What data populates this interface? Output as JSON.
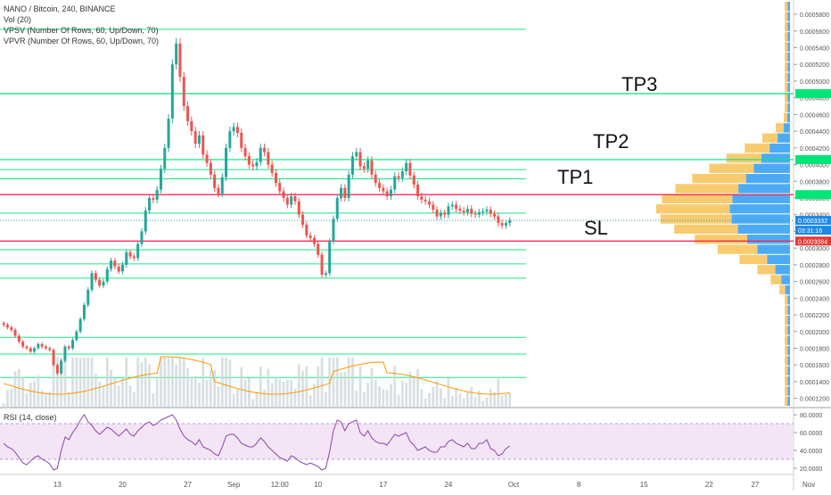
{
  "header": {
    "symbol_line": "NANO / Bitcoin, 240, BINANCE",
    "vol_line": "Vol (20)",
    "vpsv_line": "VPSV (Number Of Rows, 60, Up/Down, 70)",
    "vpvr_line": "VPVR (Number Of Rows, 60, Up/Down, 70)"
  },
  "rsi_panel": {
    "label": "RSI (14, close)",
    "ticks": [
      "80.0000",
      "60.0000",
      "40.0000",
      "20.0000"
    ],
    "tick_values": [
      80,
      60,
      40,
      20
    ],
    "bands": [
      70,
      30
    ]
  },
  "annotations": {
    "tp3": "TP3",
    "tp2": "TP2",
    "tp1": "TP1",
    "sl": "SL"
  },
  "price_axis": {
    "ticks": [
      "0.0005800",
      "0.0005600",
      "0.0005400",
      "0.0005200",
      "0.0005000",
      "0.0004800",
      "0.0004600",
      "0.0004400",
      "0.0004200",
      "0.0004000",
      "0.0003800",
      "0.0003600",
      "0.0003400",
      "0.0003200",
      "0.0003000",
      "0.0002800",
      "0.0002600",
      "0.0002400",
      "0.0002200",
      "0.0002000",
      "0.0001800",
      "0.0001600",
      "0.0001400",
      "0.0001200"
    ],
    "tick_values": [
      0.00058,
      0.00056,
      0.00054,
      0.00052,
      0.0005,
      0.00048,
      0.00046,
      0.00044,
      0.00042,
      0.0004,
      0.00038,
      0.00036,
      0.00034,
      0.00032,
      0.0003,
      0.00028,
      0.00026,
      0.00024,
      0.00022,
      0.0002,
      0.00018,
      0.00016,
      0.00014,
      0.00012
    ],
    "badges": [
      {
        "text": "0.0003332",
        "value": 0.0003332,
        "bg": "#1e88e5",
        "fg": "#ffffff"
      },
      {
        "text": "03:31:16",
        "value": 0.0003214,
        "bg": "#1e88e5",
        "fg": "#ffffff"
      },
      {
        "text": "0.0003084",
        "value": 0.0003084,
        "bg": "#e53935",
        "fg": "#ffffff"
      }
    ]
  },
  "time_axis": {
    "labels": [
      {
        "text": "13",
        "slot": 14
      },
      {
        "text": "20",
        "slot": 31
      },
      {
        "text": "27",
        "slot": 48
      },
      {
        "text": "Sep",
        "slot": 60
      },
      {
        "text": "12:00",
        "slot": 72
      },
      {
        "text": "10",
        "slot": 82
      },
      {
        "text": "17",
        "slot": 99
      },
      {
        "text": "24",
        "slot": 116
      },
      {
        "text": "Oct",
        "slot": 133
      },
      {
        "text": "8",
        "slot": 150
      },
      {
        "text": "15",
        "slot": 167
      },
      {
        "text": "22",
        "slot": 184
      },
      {
        "text": "27",
        "slot": 196
      },
      {
        "text": "Nov",
        "slot": 210
      }
    ]
  },
  "colors": {
    "up": "#26a69a",
    "down": "#ef5350",
    "level_green": "#00e676",
    "level_red": "#ff1744",
    "vp_up": "#2196f3",
    "vp_down": "#f5b942",
    "rsi_line": "#8e44ad",
    "rsi_bg": "#f3e5f5",
    "vol_ma": "#ff9800"
  },
  "chart_data": {
    "type": "candlestick",
    "y_range": [
      0.00011,
      0.000595
    ],
    "price_close": 0.0003332,
    "level_lines": [
      {
        "kind": "tp3",
        "value": 0.000485
      },
      {
        "kind": "tp2",
        "value": 0.000406
      },
      {
        "kind": "tp1",
        "value": 0.000364
      },
      {
        "kind": "sl",
        "value": 0.0003084
      }
    ],
    "support_lines": [
      0.000562,
      0.000394,
      0.000383,
      0.000342,
      0.000298,
      0.000281,
      0.000264,
      0.000193,
      0.000173,
      0.000145
    ],
    "closes": [
      0.000208,
      0.000205,
      0.000202,
      0.000195,
      0.000188,
      0.000182,
      0.00018,
      0.000176,
      0.00018,
      0.000185,
      0.000182,
      0.00018,
      0.000178,
      0.00016,
      0.00015,
      0.000165,
      0.000182,
      0.00018,
      0.00019,
      0.0002,
      0.000215,
      0.000232,
      0.00025,
      0.00027,
      0.000262,
      0.000255,
      0.00026,
      0.000275,
      0.000285,
      0.000278,
      0.000272,
      0.00028,
      0.000295,
      0.00029,
      0.000288,
      0.000305,
      0.00032,
      0.000345,
      0.00036,
      0.000358,
      0.00037,
      0.000395,
      0.00042,
      0.000455,
      0.00052,
      0.000545,
      0.000505,
      0.00047,
      0.000452,
      0.00044,
      0.000425,
      0.000435,
      0.000412,
      0.000402,
      0.000388,
      0.000372,
      0.000365,
      0.000385,
      0.00042,
      0.00044,
      0.000445,
      0.000438,
      0.00042,
      0.00041,
      0.0004,
      0.000398,
      0.000403,
      0.00042,
      0.000415,
      0.0004,
      0.00039,
      0.000378,
      0.000368,
      0.00036,
      0.000352,
      0.000362,
      0.000356,
      0.00034,
      0.000328,
      0.000315,
      0.000312,
      0.000305,
      0.000292,
      0.000268,
      0.00027,
      0.000308,
      0.000335,
      0.00036,
      0.000372,
      0.00036,
      0.000388,
      0.00041,
      0.000415,
      0.000398,
      0.000395,
      0.000405,
      0.000388,
      0.000378,
      0.000372,
      0.000368,
      0.000362,
      0.00037,
      0.000386,
      0.000384,
      0.000392,
      0.000402,
      0.000387,
      0.000376,
      0.000362,
      0.000358,
      0.000356,
      0.000352,
      0.000346,
      0.000338,
      0.000342,
      0.00034,
      0.00035,
      0.000352,
      0.000347,
      0.000345,
      0.000343,
      0.000347,
      0.000341,
      0.00034,
      0.000343,
      0.000344,
      0.000346,
      0.000341,
      0.000338,
      0.00033,
      0.000327,
      0.00033,
      0.000333
    ],
    "rsi": [
      48,
      44,
      42,
      38,
      32,
      26,
      24,
      28,
      32,
      34,
      30,
      28,
      25,
      18,
      20,
      40,
      55,
      52,
      60,
      66,
      74,
      80,
      72,
      68,
      62,
      58,
      62,
      66,
      64,
      60,
      56,
      60,
      64,
      58,
      56,
      62,
      66,
      70,
      72,
      68,
      70,
      74,
      76,
      78,
      80,
      74,
      64,
      56,
      52,
      50,
      46,
      52,
      44,
      42,
      40,
      36,
      34,
      44,
      56,
      58,
      58,
      54,
      48,
      46,
      44,
      44,
      48,
      54,
      50,
      44,
      40,
      36,
      32,
      30,
      28,
      34,
      32,
      28,
      26,
      24,
      26,
      24,
      22,
      18,
      20,
      38,
      62,
      74,
      72,
      62,
      70,
      72,
      74,
      60,
      56,
      62,
      54,
      50,
      48,
      48,
      46,
      52,
      58,
      56,
      58,
      60,
      50,
      46,
      40,
      42,
      44,
      40,
      38,
      38,
      44,
      44,
      50,
      52,
      48,
      46,
      44,
      48,
      42,
      42,
      48,
      48,
      52,
      42,
      40,
      34,
      36,
      42,
      45
    ]
  }
}
